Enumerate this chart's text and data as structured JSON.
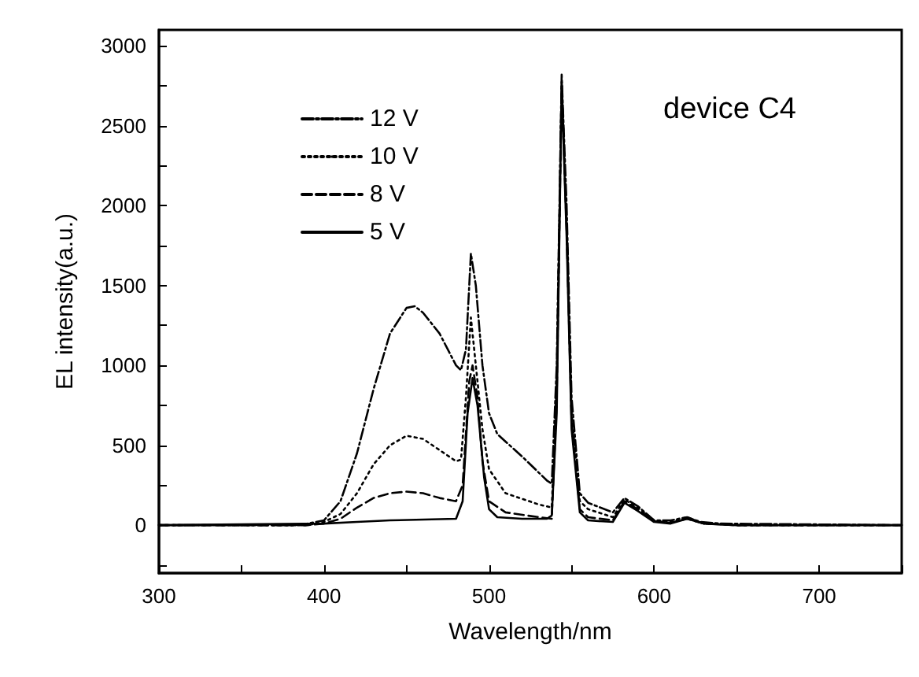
{
  "chart_data": {
    "type": "line",
    "xlabel": "Wavelength/nm",
    "ylabel": "EL intensity(a.u.)",
    "annotations": [
      "device C4"
    ],
    "xlim": [
      300,
      750
    ],
    "ylim": [
      -300,
      3100
    ],
    "xticks": [
      300,
      {
        "value": 350,
        "label": null
      },
      400,
      {
        "value": 450,
        "label": null
      },
      500,
      {
        "value": 550,
        "label": null
      },
      600,
      {
        "value": 650,
        "label": null
      },
      700,
      {
        "value": 750,
        "label": null
      }
    ],
    "yticks": [
      {
        "value": -250,
        "label": null
      },
      0,
      {
        "value": 250,
        "label": null
      },
      500,
      {
        "value": 750,
        "label": null
      },
      1000,
      {
        "value": 1250,
        "label": null
      },
      1500,
      {
        "value": 1750,
        "label": null
      },
      2000,
      {
        "value": 2250,
        "label": null
      },
      2500,
      {
        "value": 2750,
        "label": null
      },
      3000
    ],
    "grid": false,
    "legend": "top left",
    "marker": "none",
    "series": [
      {
        "name": "12 V",
        "color": "#000000",
        "line_style": "dashdot",
        "x": [
          300,
          380,
          390,
          400,
          410,
          420,
          430,
          440,
          450,
          455,
          460,
          470,
          480,
          483,
          486,
          489,
          492,
          496,
          500,
          505,
          520,
          535,
          538,
          541,
          544,
          547,
          550,
          555,
          560,
          575,
          582,
          590,
          600,
          610,
          620,
          628,
          640,
          750
        ],
        "values": [
          0,
          0,
          10,
          30,
          150,
          450,
          850,
          1200,
          1360,
          1370,
          1330,
          1200,
          1000,
          970,
          1100,
          1700,
          1500,
          1000,
          700,
          570,
          430,
          280,
          260,
          1000,
          2820,
          2000,
          800,
          200,
          140,
          80,
          170,
          120,
          30,
          30,
          50,
          20,
          10,
          0
        ]
      },
      {
        "name": "10 V",
        "color": "#000000",
        "line_style": "dotted",
        "x": [
          300,
          390,
          400,
          410,
          420,
          430,
          440,
          450,
          460,
          470,
          480,
          483,
          486,
          489,
          492,
          496,
          500,
          510,
          530,
          538,
          541,
          544,
          547,
          550,
          555,
          560,
          575,
          582,
          590,
          600,
          610,
          620,
          630,
          650,
          750
        ],
        "values": [
          0,
          0,
          20,
          70,
          200,
          380,
          500,
          560,
          540,
          470,
          400,
          410,
          800,
          1300,
          1000,
          600,
          350,
          200,
          130,
          110,
          900,
          2780,
          1900,
          700,
          150,
          100,
          50,
          160,
          110,
          30,
          20,
          50,
          10,
          0,
          0
        ]
      },
      {
        "name": "8 V",
        "color": "#000000",
        "line_style": "dashed",
        "x": [
          300,
          390,
          400,
          410,
          420,
          430,
          440,
          450,
          460,
          470,
          480,
          484,
          488,
          490,
          493,
          496,
          500,
          510,
          530,
          538,
          541,
          544,
          547,
          550,
          555,
          560,
          575,
          582,
          590,
          600,
          610,
          620,
          630,
          650,
          750
        ],
        "values": [
          0,
          0,
          10,
          40,
          110,
          170,
          200,
          210,
          200,
          170,
          150,
          250,
          900,
          1000,
          800,
          400,
          150,
          80,
          50,
          40,
          800,
          2760,
          1850,
          650,
          100,
          50,
          30,
          150,
          100,
          25,
          15,
          40,
          10,
          0,
          0
        ]
      },
      {
        "name": "5 V",
        "color": "#000000",
        "line_style": "solid",
        "x": [
          300,
          400,
          420,
          440,
          480,
          484,
          487,
          490,
          493,
          497,
          500,
          505,
          520,
          535,
          538,
          541,
          544,
          547,
          550,
          555,
          560,
          575,
          582,
          590,
          600,
          610,
          620,
          630,
          650,
          750
        ],
        "values": [
          0,
          10,
          20,
          30,
          40,
          150,
          700,
          920,
          750,
          300,
          100,
          50,
          40,
          40,
          60,
          700,
          2750,
          1800,
          600,
          80,
          30,
          20,
          140,
          90,
          20,
          10,
          40,
          10,
          0,
          0
        ]
      }
    ]
  }
}
